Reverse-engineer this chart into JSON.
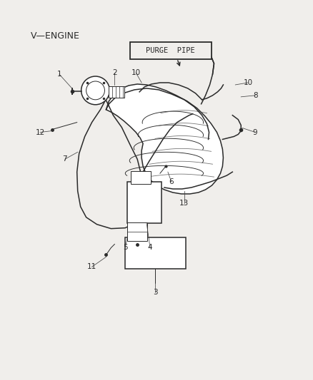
{
  "background_color": "#f0eeeb",
  "line_color": "#2a2a2a",
  "label_v_engine": "V—ENGINE",
  "label_purge_pipe": "PURGE  PIPE",
  "fig_width": 4.38,
  "fig_height": 5.33,
  "dpi": 100
}
